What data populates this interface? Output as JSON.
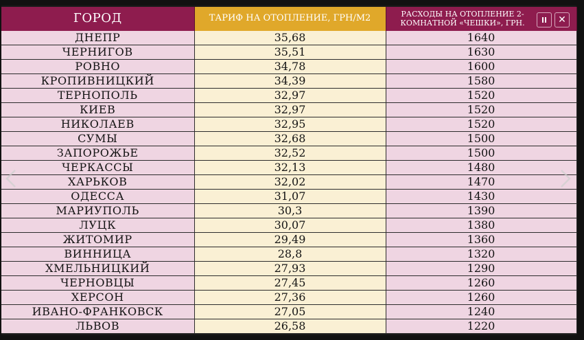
{
  "table": {
    "headers": {
      "city": "ГОРОД",
      "tariff": "ТАРИФ НА ОТОПЛЕНИЕ, ГРН/М2",
      "cost": "РАСХОДЫ НА ОТОПЛЕНИЕ 2-КОМНАТНОЙ «ЧЕШКИ», ГРН."
    },
    "rows": [
      {
        "city": "ДНЕПР",
        "tariff": "35,68",
        "cost": "1640"
      },
      {
        "city": "ЧЕРНИГОВ",
        "tariff": "35,51",
        "cost": "1630"
      },
      {
        "city": "РОВНО",
        "tariff": "34,78",
        "cost": "1600"
      },
      {
        "city": "КРОПИВНИЦКИЙ",
        "tariff": "34,39",
        "cost": "1580"
      },
      {
        "city": "ТЕРНОПОЛЬ",
        "tariff": "32,97",
        "cost": "1520"
      },
      {
        "city": "КИЕВ",
        "tariff": "32,97",
        "cost": "1520"
      },
      {
        "city": "НИКОЛАЕВ",
        "tariff": "32,95",
        "cost": "1520"
      },
      {
        "city": "СУМЫ",
        "tariff": "32,68",
        "cost": "1500"
      },
      {
        "city": "ЗАПОРОЖЬЕ",
        "tariff": "32,52",
        "cost": "1500"
      },
      {
        "city": "ЧЕРКАССЫ",
        "tariff": "32,13",
        "cost": "1480"
      },
      {
        "city": "ХАРЬКОВ",
        "tariff": "32,02",
        "cost": "1470"
      },
      {
        "city": "ОДЕССА",
        "tariff": "31,07",
        "cost": "1430"
      },
      {
        "city": "МАРИУПОЛЬ",
        "tariff": "30,3",
        "cost": "1390"
      },
      {
        "city": "ЛУЦК",
        "tariff": "30,07",
        "cost": "1380"
      },
      {
        "city": "ЖИТОМИР",
        "tariff": "29,49",
        "cost": "1360"
      },
      {
        "city": "ВИННИЦА",
        "tariff": "28,8",
        "cost": "1320"
      },
      {
        "city": "ХМЕЛЬНИЦКИЙ",
        "tariff": "27,93",
        "cost": "1290"
      },
      {
        "city": "ЧЕРНОВЦЫ",
        "tariff": "27,45",
        "cost": "1260"
      },
      {
        "city": "ХЕРСОН",
        "tariff": "27,36",
        "cost": "1260"
      },
      {
        "city": "ИВАНО-ФРАНКОВСК",
        "tariff": "27,05",
        "cost": "1240"
      },
      {
        "city": "ЛЬВОВ",
        "tariff": "26,58",
        "cost": "1220"
      }
    ]
  },
  "controls": {
    "pause_icon": "pause-icon",
    "close_icon": "close-icon",
    "close_glyph": "✕",
    "prev_icon": "chevron-left-icon",
    "next_icon": "chevron-right-icon"
  },
  "colors": {
    "header_wine": "#8e1c4e",
    "header_gold": "#e0a82a",
    "row_pink": "#efd5e2",
    "row_cream": "#faf0d4"
  }
}
